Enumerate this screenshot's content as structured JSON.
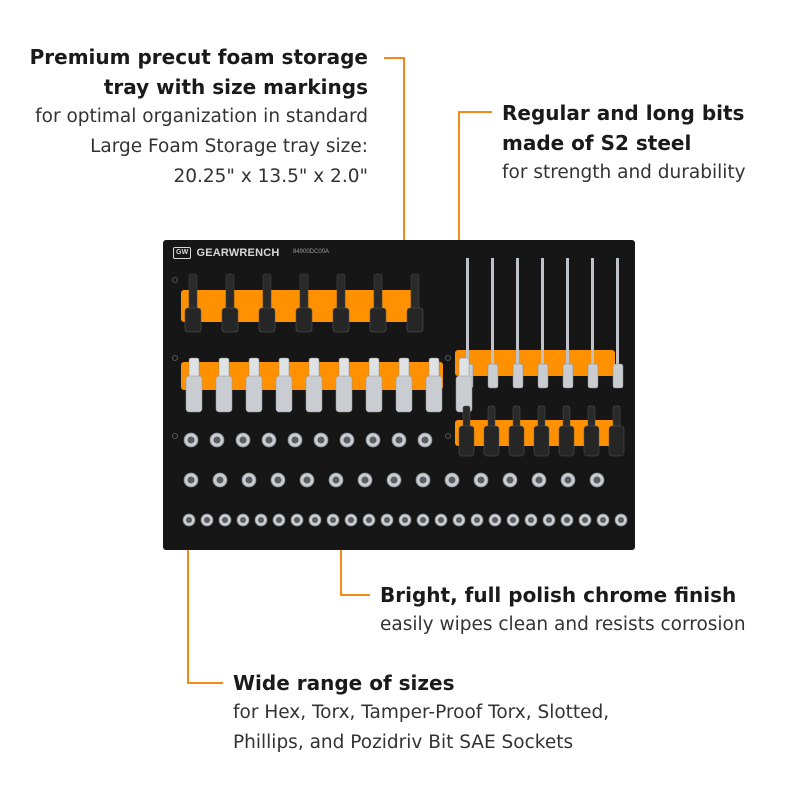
{
  "colors": {
    "accent": "#f28a1b",
    "foam": "#161616",
    "insert": "#ff9100",
    "chrome": "#c9cdd1"
  },
  "callouts": {
    "storage": {
      "heading_line1": "Premium precut foam storage",
      "heading_line2": "tray with size markings",
      "desc_line1": "for optimal organization in standard",
      "desc_line2": "Large Foam Storage tray size:",
      "desc_line3": "20.25\" x 13.5\" x 2.0\""
    },
    "bits": {
      "heading_line1": "Regular and long bits",
      "heading_line2": "made of S2 steel",
      "desc_line1": "for strength and durability"
    },
    "chrome": {
      "heading": "Bright, full polish chrome finish",
      "desc": "easily wipes clean and resists corrosion"
    },
    "sizes": {
      "heading": "Wide range of sizes",
      "desc_line1": "for Hex, Torx, Tamper-Proof Torx, Slotted,",
      "desc_line2": "Phillips, and Pozidriv Bit SAE Sockets"
    }
  },
  "tray": {
    "brand": "GEARWRENCH",
    "logo": "GW",
    "part_number": "84900DC00A"
  }
}
